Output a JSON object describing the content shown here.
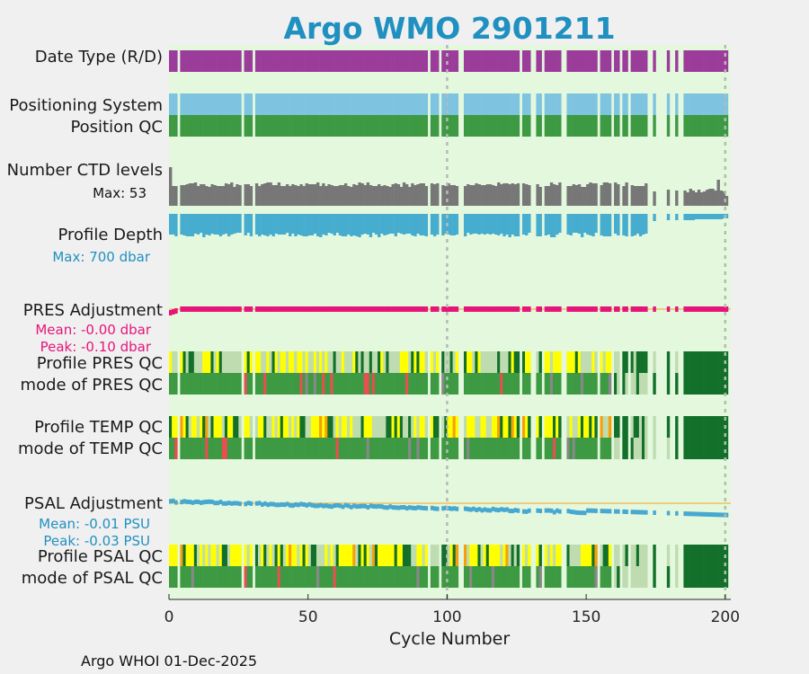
{
  "chart_data": {
    "type": "heatmap",
    "title": "Argo WMO 2901211",
    "xlabel": "Cycle Number",
    "xlim": [
      0,
      202
    ],
    "xticks": [
      0,
      50,
      100,
      150,
      200
    ],
    "vlines": [
      100,
      200
    ],
    "row_labels": {
      "date_type": "Date Type (R/D)",
      "positioning_system": "Positioning System",
      "position_qc": "Position QC",
      "ctd_levels": "Number CTD levels",
      "profile_depth": "Profile Depth",
      "pres_adjustment": "PRES Adjustment",
      "profile_pres_qc": "Profile PRES QC",
      "mode_pres_qc": "mode of PRES QC",
      "profile_temp_qc": "Profile TEMP QC",
      "mode_temp_qc": "mode of TEMP QC",
      "psal_adjustment": "PSAL Adjustment",
      "profile_psal_qc": "Profile PSAL QC",
      "mode_psal_qc": "mode of PSAL QC"
    },
    "annotations": {
      "ctd_max": "Max: 53",
      "depth_max": "Max:  700 dbar",
      "pres_mean": "Mean: -0.00 dbar",
      "pres_peak": "Peak: -0.10 dbar",
      "psal_mean": "Mean: -0.01 PSU",
      "psal_peak": "Peak: -0.03 PSU"
    },
    "ctd_levels_max": 53,
    "profile_depth_max_dbar": 700,
    "missing_cycles": [
      4,
      27,
      31,
      94,
      98,
      105,
      106,
      127,
      131,
      132,
      135,
      142,
      143,
      155,
      160,
      163,
      166,
      173,
      174,
      176,
      177,
      178,
      179,
      181,
      182,
      184,
      185
    ],
    "colors": {
      "background": "#e4f8de",
      "date_type": "#9b3c9b",
      "positioning": "#7ec4e0",
      "position_qc": "#3d9a43",
      "ctd": "#777777",
      "depth": "#47adcf",
      "pres": "#e6157a",
      "psal": "#47a8d0",
      "zero_line": "#f0c060",
      "qc_good": "#3d9a43",
      "qc_dark": "#12702a",
      "qc_light": "#bfdcb1",
      "qc_yellow": "#ffff00",
      "qc_orange": "#f5a00a",
      "qc_red": "#e55050",
      "qc_gray": "#888888"
    },
    "footer": "Argo WHOI 01-Dec-2025"
  }
}
